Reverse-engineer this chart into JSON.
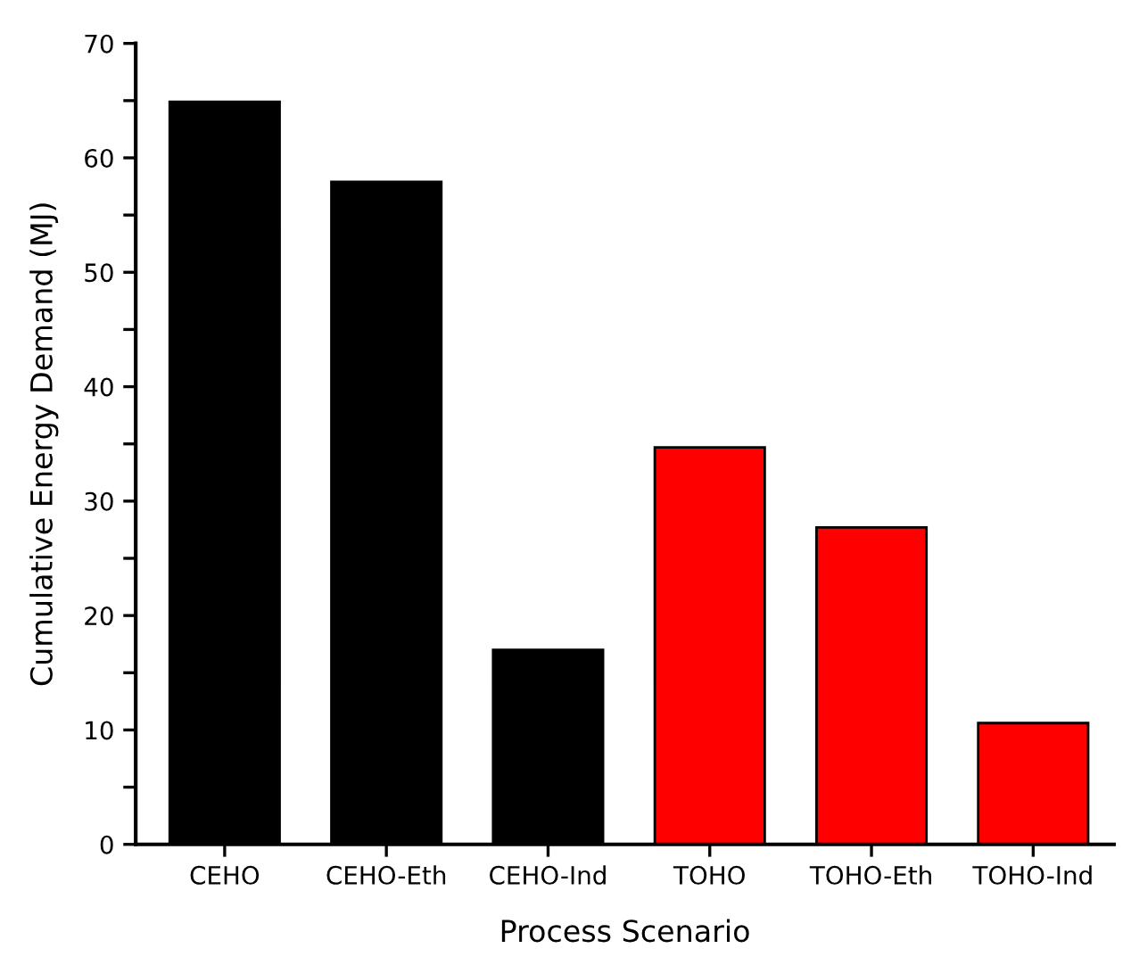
{
  "chart_data": {
    "type": "bar",
    "xlabel": "Process Scenario",
    "ylabel": "Cumulative Energy Demand (MJ)",
    "categories": [
      "CEHO",
      "CEHO-Eth",
      "CEHO-Ind",
      "TOHO",
      "TOHO-Eth",
      "TOHO-Ind"
    ],
    "values": [
      64.9,
      57.9,
      17.0,
      34.7,
      27.7,
      10.6
    ],
    "colors": [
      "#000000",
      "#000000",
      "#000000",
      "#ff0000",
      "#ff0000",
      "#ff0000"
    ],
    "ylim": [
      0,
      70
    ],
    "yticks": [
      0,
      {
        "value": 5,
        "label": null
      },
      10,
      {
        "value": 15,
        "label": null
      },
      20,
      {
        "value": 25,
        "label": null
      },
      30,
      {
        "value": 35,
        "label": null
      },
      40,
      {
        "value": 45,
        "label": null
      },
      50,
      {
        "value": 55,
        "label": null
      },
      60,
      {
        "value": 65,
        "label": null
      },
      70
    ],
    "grid": false,
    "legend": false
  }
}
